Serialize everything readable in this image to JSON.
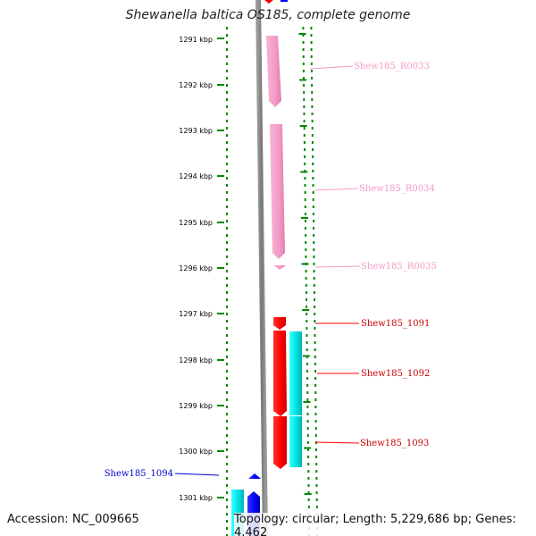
{
  "title": "Shewanella baltica OS185, complete genome",
  "footer": {
    "accession": "Accession: NC_009665",
    "summary": "Topology: circular; Length: 5,229,686 bp; Genes: 4,462"
  },
  "ruler": {
    "ticks": [
      "1291 kbp",
      "1292 kbp",
      "1293 kbp",
      "1294 kbp",
      "1295 kbp",
      "1296 kbp",
      "1297 kbp",
      "1298 kbp",
      "1299 kbp",
      "1300 kbp",
      "1301 kbp"
    ]
  },
  "genes": [
    {
      "name": "Shew185_R0033",
      "color": "#f49ac6"
    },
    {
      "name": "Shew185_R0034",
      "color": "#f49ac6"
    },
    {
      "name": "Shew185_R0035",
      "color": "#f49ac6"
    },
    {
      "name": "Shew185_1091",
      "color": "#ff0000"
    },
    {
      "name": "Shew185_1092",
      "color": "#ff0000"
    },
    {
      "name": "Shew185_1093",
      "color": "#ff0000"
    },
    {
      "name": "Shew185_1094",
      "color": "#0000cc"
    }
  ],
  "colors": {
    "rna": "#f49ac6",
    "cds_forward": "#ff0000",
    "cds_reverse": "#0000ff",
    "cog": "#00e5e5",
    "dots": "#008800",
    "backbone": "#888888"
  }
}
